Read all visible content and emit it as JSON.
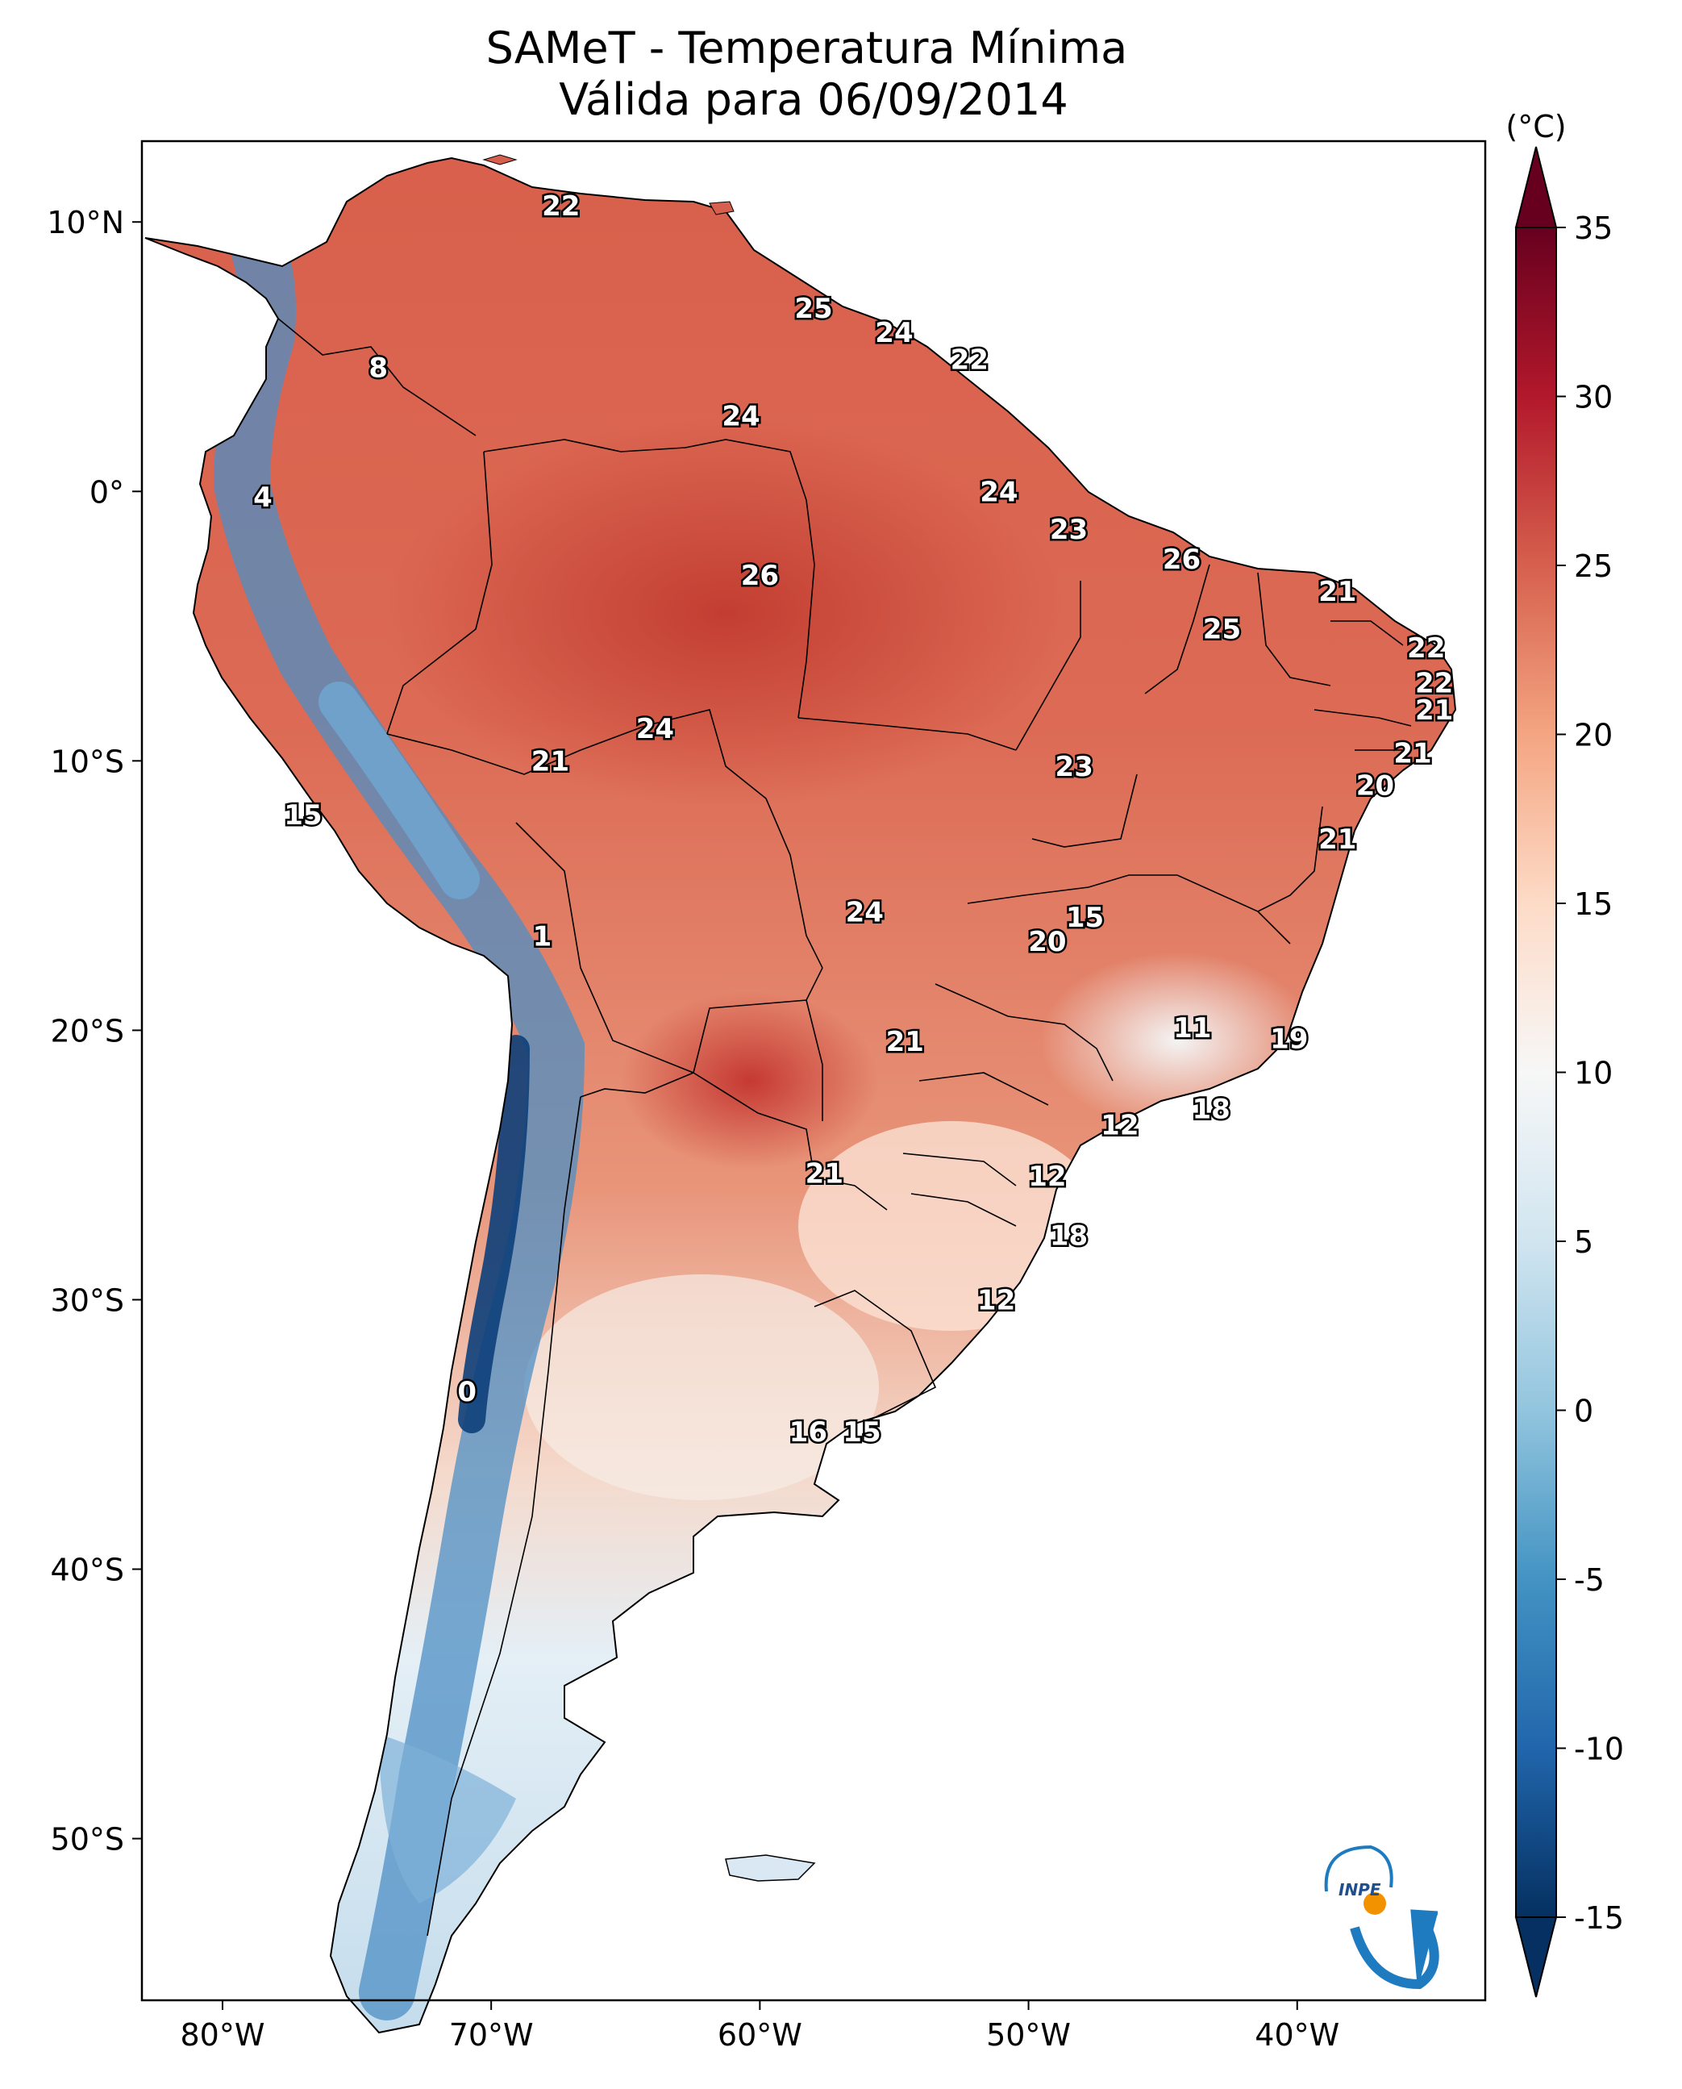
{
  "title_line1": "SAMeT - Temperatura Mínima",
  "title_line2": "Válida para 06/09/2014",
  "map": {
    "lon_range": [
      -83,
      -33
    ],
    "lat_range": [
      -56,
      13
    ],
    "lat_ticks": [
      "10°N",
      "0°",
      "10°S",
      "20°S",
      "30°S",
      "40°S",
      "50°S"
    ],
    "lat_tick_values": [
      10,
      0,
      -10,
      -20,
      -30,
      -40,
      -50
    ],
    "lon_ticks": [
      "80°W",
      "70°W",
      "60°W",
      "50°W",
      "40°W"
    ],
    "lon_tick_values": [
      -80,
      -70,
      -60,
      -50,
      -40
    ]
  },
  "colorbar": {
    "unit": "(°C)",
    "ticks": [
      "35",
      "30",
      "25",
      "20",
      "15",
      "10",
      "5",
      "0",
      "-5",
      "-10",
      "-15"
    ],
    "tick_values": [
      35,
      30,
      25,
      20,
      15,
      10,
      5,
      0,
      -5,
      -10,
      -15
    ],
    "range": [
      -15,
      35
    ],
    "colormap": "RdBu_r",
    "colors": [
      "#053061",
      "#2166ac",
      "#4393c3",
      "#92c5de",
      "#d1e5f0",
      "#f7f7f7",
      "#fddbc7",
      "#f4a582",
      "#d6604d",
      "#b2182b",
      "#67001f"
    ]
  },
  "labels": [
    {
      "value": "22",
      "lat": 10.6,
      "lon": -67.4
    },
    {
      "value": "8",
      "lat": 4.6,
      "lon": -74.2
    },
    {
      "value": "25",
      "lat": 6.8,
      "lon": -58.0
    },
    {
      "value": "24",
      "lat": 5.9,
      "lon": -55.0
    },
    {
      "value": "22",
      "lat": 4.9,
      "lon": -52.2
    },
    {
      "value": "24",
      "lat": 2.8,
      "lon": -60.7
    },
    {
      "value": "4",
      "lat": -0.2,
      "lon": -78.5
    },
    {
      "value": "24",
      "lat": 0.0,
      "lon": -51.1
    },
    {
      "value": "23",
      "lat": -1.4,
      "lon": -48.5
    },
    {
      "value": "26",
      "lat": -3.1,
      "lon": -60.0
    },
    {
      "value": "26",
      "lat": -2.5,
      "lon": -44.3
    },
    {
      "value": "21",
      "lat": -3.7,
      "lon": -38.5
    },
    {
      "value": "25",
      "lat": -5.1,
      "lon": -42.8
    },
    {
      "value": "22",
      "lat": -5.8,
      "lon": -35.2
    },
    {
      "value": "22",
      "lat": -7.1,
      "lon": -34.9
    },
    {
      "value": "21",
      "lat": -8.1,
      "lon": -34.9
    },
    {
      "value": "24",
      "lat": -8.8,
      "lon": -63.9
    },
    {
      "value": "21",
      "lat": -10.0,
      "lon": -67.8
    },
    {
      "value": "23",
      "lat": -10.2,
      "lon": -48.3
    },
    {
      "value": "21",
      "lat": -9.7,
      "lon": -35.7
    },
    {
      "value": "20",
      "lat": -10.9,
      "lon": -37.1
    },
    {
      "value": "15",
      "lat": -12.0,
      "lon": -77.0
    },
    {
      "value": "21",
      "lat": -12.9,
      "lon": -38.5
    },
    {
      "value": "24",
      "lat": -15.6,
      "lon": -56.1
    },
    {
      "value": "15",
      "lat": -15.8,
      "lon": -47.9
    },
    {
      "value": "20",
      "lat": -16.7,
      "lon": -49.3
    },
    {
      "value": "1",
      "lat": -16.5,
      "lon": -68.1
    },
    {
      "value": "11",
      "lat": -19.9,
      "lon": -43.9
    },
    {
      "value": "19",
      "lat": -20.3,
      "lon": -40.3
    },
    {
      "value": "21",
      "lat": -20.4,
      "lon": -54.6
    },
    {
      "value": "18",
      "lat": -22.9,
      "lon": -43.2
    },
    {
      "value": "12",
      "lat": -23.5,
      "lon": -46.6
    },
    {
      "value": "21",
      "lat": -25.3,
      "lon": -57.6
    },
    {
      "value": "12",
      "lat": -25.4,
      "lon": -49.3
    },
    {
      "value": "18",
      "lat": -27.6,
      "lon": -48.5
    },
    {
      "value": "12",
      "lat": -30.0,
      "lon": -51.2
    },
    {
      "value": "0",
      "lat": -33.4,
      "lon": -70.9
    },
    {
      "value": "16",
      "lat": -34.9,
      "lon": -58.2
    },
    {
      "value": "15",
      "lat": -34.9,
      "lon": -56.2
    }
  ],
  "logo_text": "INPE"
}
